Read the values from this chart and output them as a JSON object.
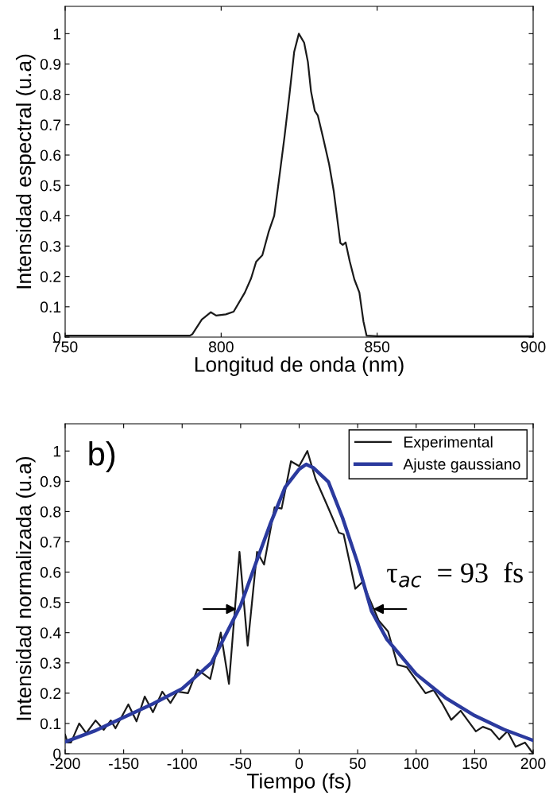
{
  "chart_data": [
    {
      "type": "line",
      "xlabel": "Longitud de onda (nm)",
      "ylabel": "Intensidad espectral (u.a)",
      "xlim": [
        750,
        900
      ],
      "xticks": [
        750,
        800,
        850,
        900
      ],
      "ylim": [
        0,
        1.09
      ],
      "yticks": [
        0,
        0.1,
        0.2,
        0.3,
        0.4,
        0.5,
        0.6,
        0.7,
        0.8,
        0.9,
        1
      ],
      "grid": false,
      "legend": false,
      "series": [
        {
          "color": "#1a1a1a",
          "x": [
            750,
            760,
            770,
            780,
            790,
            790.8,
            793.8,
            796.7,
            798.4,
            801.5,
            804,
            807.6,
            809.6,
            811.2,
            813.2,
            815.2,
            817,
            818.3,
            820.3,
            821.9,
            823.4,
            824.9,
            826.6,
            827.8,
            828.8,
            830,
            831,
            832.6,
            834.6,
            836.1,
            838.2,
            839,
            839.9,
            841.2,
            842.7,
            844.3,
            845.6,
            846.6,
            850,
            860,
            870,
            880,
            890,
            900
          ],
          "values": [
            0.005,
            0.005,
            0.005,
            0.005,
            0.005,
            0.01,
            0.058,
            0.082,
            0.071,
            0.075,
            0.084,
            0.147,
            0.194,
            0.248,
            0.27,
            0.346,
            0.4,
            0.5,
            0.66,
            0.8,
            0.94,
            1.0,
            0.97,
            0.907,
            0.81,
            0.746,
            0.73,
            0.66,
            0.57,
            0.48,
            0.31,
            0.304,
            0.312,
            0.25,
            0.19,
            0.147,
            0.052,
            0.005,
            0.003,
            0.003,
            0.003,
            0.003,
            0.003,
            0.003
          ]
        }
      ]
    },
    {
      "type": "line",
      "xlabel": "Tiempo (fs)",
      "ylabel": "Intensidad normalizada (u.a)",
      "xlim": [
        -200,
        200
      ],
      "xticks": [
        -200,
        -150,
        -100,
        -50,
        0,
        50,
        100,
        150,
        200
      ],
      "ylim": [
        0,
        1.09
      ],
      "yticks": [
        0,
        0.1,
        0.2,
        0.3,
        0.4,
        0.5,
        0.6,
        0.7,
        0.8,
        0.9,
        1
      ],
      "grid": false,
      "legend": "top right",
      "annotations": [
        "b)",
        "τ$_{ac}$  = 93  fs"
      ],
      "series": [
        {
          "name": "Experimental",
          "color": "#1a1a1a",
          "x": [
            -200,
            -198,
            -195,
            -188,
            -182,
            -174,
            -167,
            -161,
            -157,
            -146,
            -139,
            -132,
            -125,
            -117,
            -110,
            -104,
            -95,
            -87,
            -76,
            -67,
            -60,
            -51,
            -44,
            -36,
            -30,
            -21,
            -15,
            -7,
            0,
            7,
            14,
            24,
            34,
            38,
            48,
            54,
            68,
            76,
            84,
            92,
            108,
            115,
            122,
            130,
            138,
            151,
            157,
            164,
            171,
            178,
            185,
            193,
            200
          ],
          "values": [
            0.063,
            0.037,
            0.037,
            0.1,
            0.068,
            0.11,
            0.079,
            0.11,
            0.084,
            0.163,
            0.107,
            0.189,
            0.137,
            0.205,
            0.168,
            0.205,
            0.2,
            0.278,
            0.247,
            0.4,
            0.231,
            0.667,
            0.357,
            0.667,
            0.625,
            0.814,
            0.81,
            0.966,
            0.95,
            1.0,
            0.908,
            0.82,
            0.73,
            0.725,
            0.545,
            0.567,
            0.44,
            0.404,
            0.294,
            0.286,
            0.2,
            0.21,
            0.168,
            0.112,
            0.142,
            0.074,
            0.089,
            0.079,
            0.047,
            0.074,
            0.023,
            0.037,
            0.0
          ]
        },
        {
          "name": "Ajuste gaussiano",
          "color": "#2b3a9e",
          "x": [
            -200,
            -175,
            -150,
            -125,
            -100,
            -75,
            -50,
            -37,
            -25,
            -12,
            0,
            6,
            12,
            25,
            37,
            50,
            62,
            75,
            100,
            125,
            150,
            175,
            200
          ],
          "values": [
            0.039,
            0.075,
            0.12,
            0.165,
            0.215,
            0.3,
            0.49,
            0.63,
            0.756,
            0.88,
            0.94,
            0.956,
            0.945,
            0.898,
            0.78,
            0.63,
            0.47,
            0.378,
            0.263,
            0.185,
            0.126,
            0.08,
            0.044
          ]
        }
      ]
    }
  ]
}
